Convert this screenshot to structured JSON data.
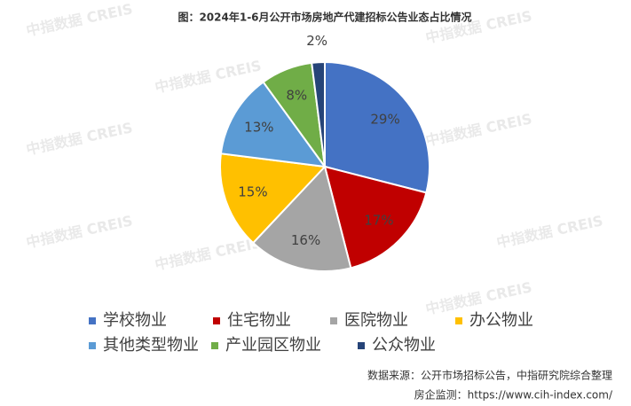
{
  "chart_data": {
    "type": "pie",
    "title": "图：2024年1-6月公开市场房地产代建招标公告业态占比情况",
    "categories": [
      "学校物业",
      "住宅物业",
      "医院物业",
      "办公物业",
      "其他类型物业",
      "产业园区物业",
      "公众物业"
    ],
    "values": [
      29,
      17,
      16,
      15,
      13,
      8,
      2
    ],
    "value_labels": [
      "29%",
      "17%",
      "16%",
      "15%",
      "13%",
      "8%",
      "2%"
    ],
    "colors": [
      "#4472c4",
      "#c00000",
      "#a5a5a5",
      "#ffc000",
      "#5b9bd5",
      "#70ad47",
      "#264478"
    ],
    "source": "数据来源：公开市场招标公告，中指研究院综合整理",
    "monitor": "房企监测：https://www.cih-index.com/",
    "watermark": "中指数据 CREIS"
  }
}
